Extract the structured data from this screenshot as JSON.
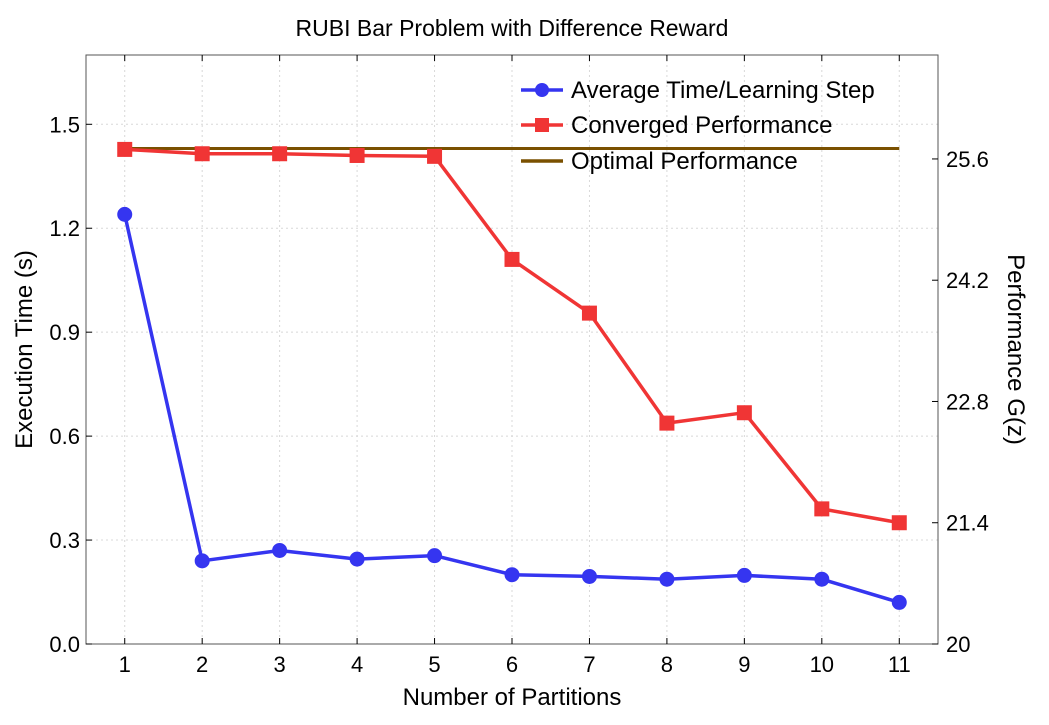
{
  "chart_data": {
    "type": "line",
    "title": "RUBI Bar Problem with Difference Reward",
    "xlabel": "Number of Partitions",
    "ylabel": "Execution Time (s)",
    "y2label": "Performance G(z)",
    "x": [
      1,
      2,
      3,
      4,
      5,
      6,
      7,
      8,
      9,
      10,
      11
    ],
    "xticks": [
      "1",
      "2",
      "3",
      "4",
      "5",
      "6",
      "7",
      "8",
      "9",
      "10",
      "11"
    ],
    "xlim": [
      0.5,
      11.5
    ],
    "ylim": [
      0,
      1.7
    ],
    "yticks": [
      0.0,
      0.3,
      0.6,
      0.9,
      1.2,
      1.5
    ],
    "yticklabels": [
      "0.0",
      "0.3",
      "0.6",
      "0.9",
      "1.2",
      "1.5"
    ],
    "y2lim": [
      20,
      26.8
    ],
    "y2ticks": [
      20,
      21.4,
      22.8,
      24.2,
      25.6
    ],
    "y2ticklabels": [
      "20",
      "21.4",
      "22.8",
      "24.2",
      "25.6"
    ],
    "grid": true,
    "legend_position": "top-right",
    "series": [
      {
        "name": "Average Time/Learning Step",
        "axis": "left",
        "marker": "circle",
        "color": "#3535f0",
        "values": [
          1.24,
          0.24,
          0.27,
          0.245,
          0.255,
          0.2,
          0.195,
          0.187,
          0.198,
          0.187,
          0.12
        ]
      },
      {
        "name": "Converged Performance",
        "axis": "right",
        "marker": "square",
        "color": "#f03535",
        "values": [
          25.71,
          25.66,
          25.66,
          25.64,
          25.63,
          24.44,
          23.82,
          22.55,
          22.67,
          21.56,
          21.4
        ]
      },
      {
        "name": "Optimal Performance",
        "axis": "right",
        "marker": "none",
        "color": "#7a5000",
        "values": [
          25.72,
          25.72,
          25.72,
          25.72,
          25.72,
          25.72,
          25.72,
          25.72,
          25.72,
          25.72,
          25.72
        ]
      }
    ]
  }
}
